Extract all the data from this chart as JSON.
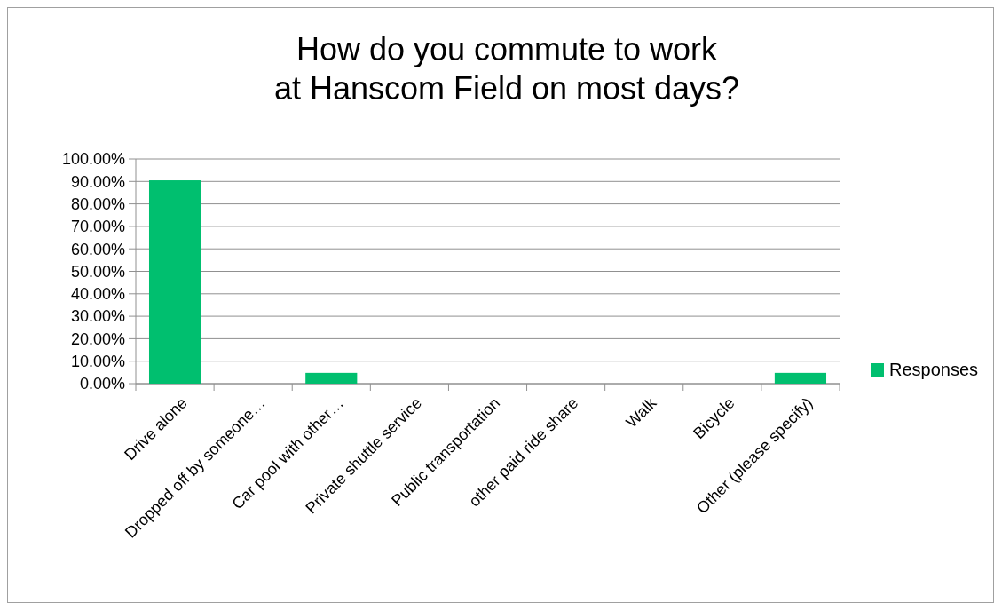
{
  "chart_data": {
    "type": "bar",
    "title": "How do you commute to work at Hanscom Field on most days?",
    "categories": [
      "Drive alone",
      "Dropped off by someone…",
      "Car pool with other…",
      "Private shuttle service",
      "Public transportation",
      "other paid ride share",
      "Walk",
      "Bicycle",
      "Other (please specify)"
    ],
    "series": [
      {
        "name": "Responses",
        "color": "#00bf6f",
        "values": [
          90.5,
          0,
          4.8,
          0,
          0,
          0,
          0,
          0,
          4.8
        ]
      }
    ],
    "ylim": [
      0,
      100
    ],
    "yticks": [
      {
        "value": 0,
        "label": "0.00%"
      },
      {
        "value": 10,
        "label": "10.00%"
      },
      {
        "value": 20,
        "label": "20.00%"
      },
      {
        "value": 30,
        "label": "30.00%"
      },
      {
        "value": 40,
        "label": "40.00%"
      },
      {
        "value": 50,
        "label": "50.00%"
      },
      {
        "value": 60,
        "label": "60.00%"
      },
      {
        "value": 70,
        "label": "70.00%"
      },
      {
        "value": 80,
        "label": "80.00%"
      },
      {
        "value": 90,
        "label": "90.00%"
      },
      {
        "value": 100,
        "label": "100.00%"
      }
    ],
    "grid": "y",
    "legend": "right"
  }
}
